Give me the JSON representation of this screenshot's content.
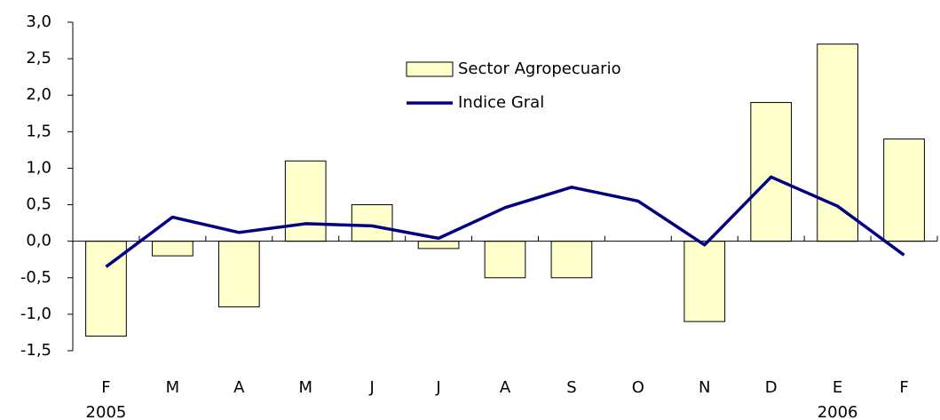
{
  "chart_data": {
    "type": "bar_line",
    "categories": [
      "F",
      "M",
      "A",
      "M",
      "J",
      "J",
      "A",
      "S",
      "O",
      "N",
      "D",
      "E",
      "F"
    ],
    "year_labels": [
      "2005",
      null,
      null,
      null,
      null,
      null,
      null,
      null,
      null,
      null,
      null,
      "2006",
      null
    ],
    "series": [
      {
        "name": "Sector Agropecuario",
        "type": "bar",
        "color": "#ffffcc",
        "values": [
          -1.3,
          -0.2,
          -0.9,
          1.1,
          0.5,
          -0.1,
          -0.5,
          -0.5,
          0,
          -1.1,
          1.9,
          2.7,
          1.4
        ]
      },
      {
        "name": "Indice Gral",
        "type": "line",
        "color": "#000080",
        "values": [
          -0.35,
          0.33,
          0.12,
          0.24,
          0.21,
          0.04,
          0.46,
          0.74,
          0.55,
          -0.05,
          0.88,
          0.48,
          -0.19
        ]
      }
    ],
    "ylim": [
      -1.5,
      3.0
    ],
    "yticks": [
      {
        "value": -1.5,
        "label": "-1,5"
      },
      {
        "value": -1.0,
        "label": "-1,0"
      },
      {
        "value": -0.5,
        "label": "-0,5"
      },
      {
        "value": 0,
        "label": "0,0"
      },
      {
        "value": 0.5,
        "label": "0,5"
      },
      {
        "value": 1.0,
        "label": "1,0"
      },
      {
        "value": 1.5,
        "label": "1,5"
      },
      {
        "value": 2.0,
        "label": "2,0"
      },
      {
        "value": 2.5,
        "label": "2,5"
      },
      {
        "value": 3.0,
        "label": "3,0"
      }
    ],
    "legend": "top-center"
  }
}
